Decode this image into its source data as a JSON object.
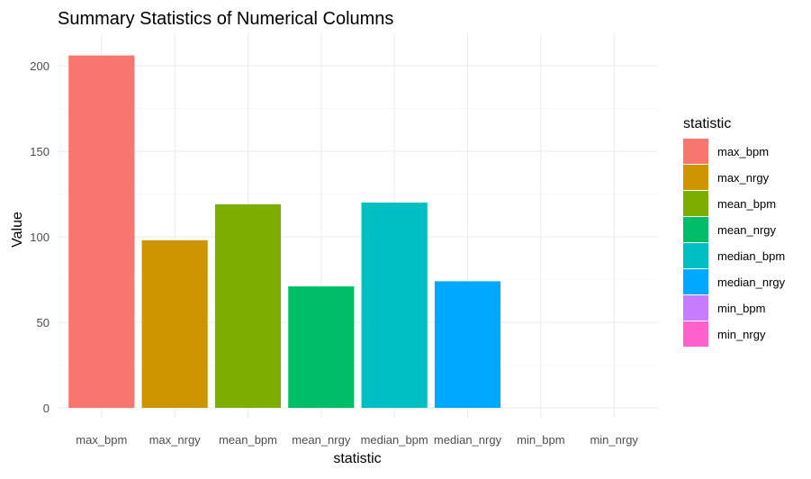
{
  "chart_data": {
    "type": "bar",
    "title": "Summary Statistics of Numerical Columns",
    "xlabel": "statistic",
    "ylabel": "Value",
    "categories": [
      "max_bpm",
      "max_nrgy",
      "mean_bpm",
      "mean_nrgy",
      "median_bpm",
      "median_nrgy",
      "min_bpm",
      "min_nrgy"
    ],
    "values": [
      206,
      98,
      119,
      71,
      120,
      74,
      0,
      0
    ],
    "ylim": [
      0,
      210
    ],
    "yticks": [
      0,
      50,
      100,
      150,
      200
    ],
    "grid": true,
    "legend": {
      "title": "statistic",
      "position": "right"
    },
    "colors": [
      "#F8766D",
      "#CD9600",
      "#7CAE00",
      "#00BE67",
      "#00BFC4",
      "#00A9FF",
      "#C77CFF",
      "#FF61CC"
    ]
  }
}
